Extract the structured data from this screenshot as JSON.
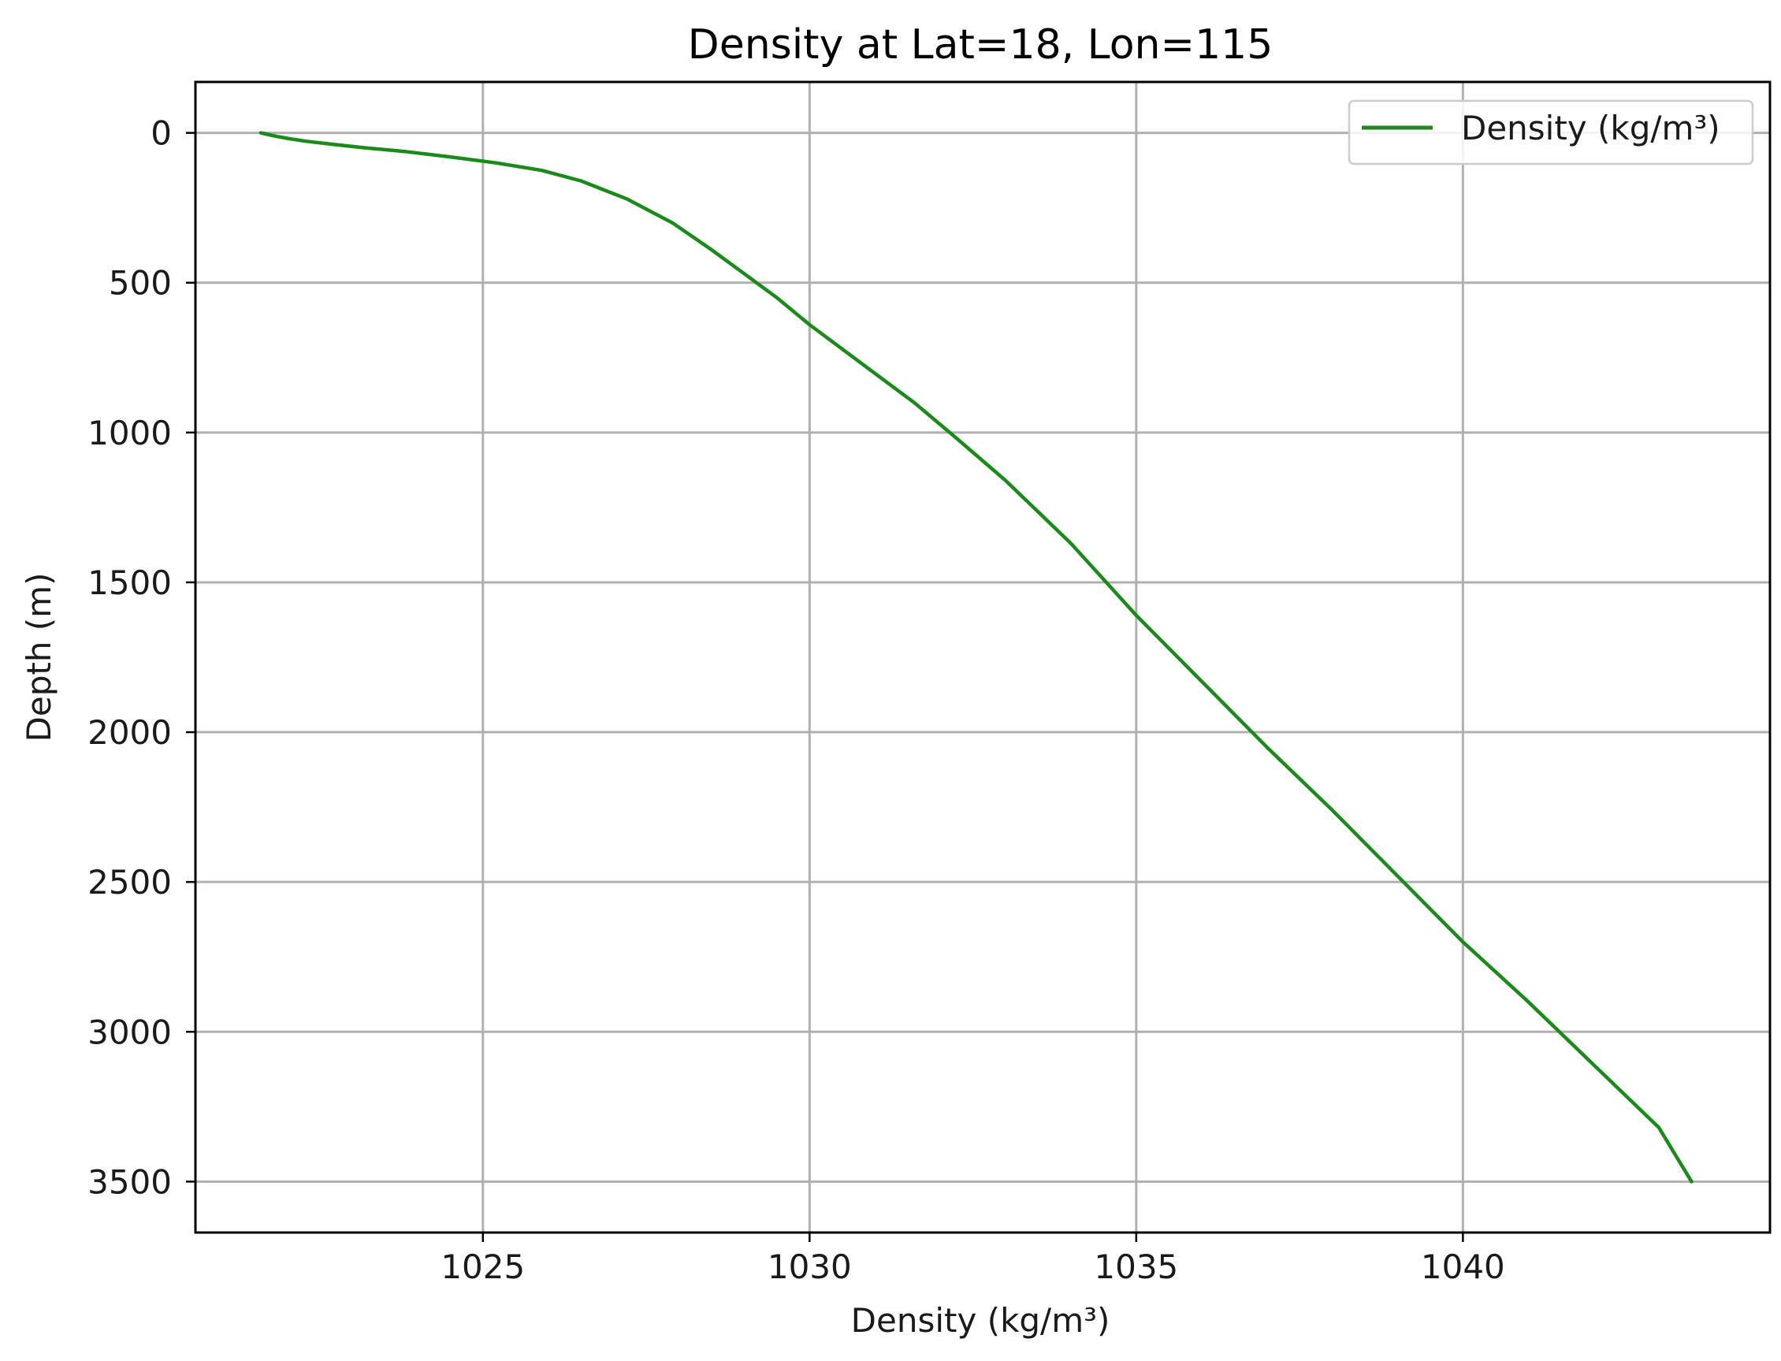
{
  "chart_data": {
    "type": "line",
    "title": "Density at Lat=18, Lon=115",
    "xlabel": "Density (kg/m³)",
    "ylabel": "Depth (m)",
    "xlim": [
      1020.6,
      1044.7
    ],
    "ylim": [
      3670,
      -170
    ],
    "y_inverted": true,
    "xticks": [
      1025,
      1030,
      1035,
      1040
    ],
    "yticks": [
      0,
      500,
      1000,
      1500,
      2000,
      2500,
      3000,
      3500
    ],
    "grid": true,
    "legend_position": "top-right",
    "series": [
      {
        "name": "Density (kg/m³)",
        "color": "#1a8a1a",
        "x": [
          1021.6,
          1021.7,
          1021.85,
          1022.05,
          1022.3,
          1022.7,
          1023.2,
          1023.8,
          1024.5,
          1025.2,
          1025.9,
          1026.5,
          1027.2,
          1027.9,
          1028.5,
          1029.0,
          1029.5,
          1030.0,
          1030.8,
          1031.6,
          1032.2,
          1033.0,
          1034.0,
          1035.0,
          1036.0,
          1037.0,
          1038.0,
          1039.0,
          1040.0,
          1041.0,
          1042.0,
          1043.0,
          1043.5
        ],
        "y": [
          0,
          5,
          12,
          20,
          28,
          38,
          50,
          62,
          80,
          100,
          125,
          160,
          220,
          300,
          390,
          470,
          550,
          640,
          770,
          900,
          1010,
          1160,
          1370,
          1610,
          1830,
          2050,
          2260,
          2480,
          2700,
          2900,
          3110,
          3320,
          3500
        ]
      }
    ]
  }
}
